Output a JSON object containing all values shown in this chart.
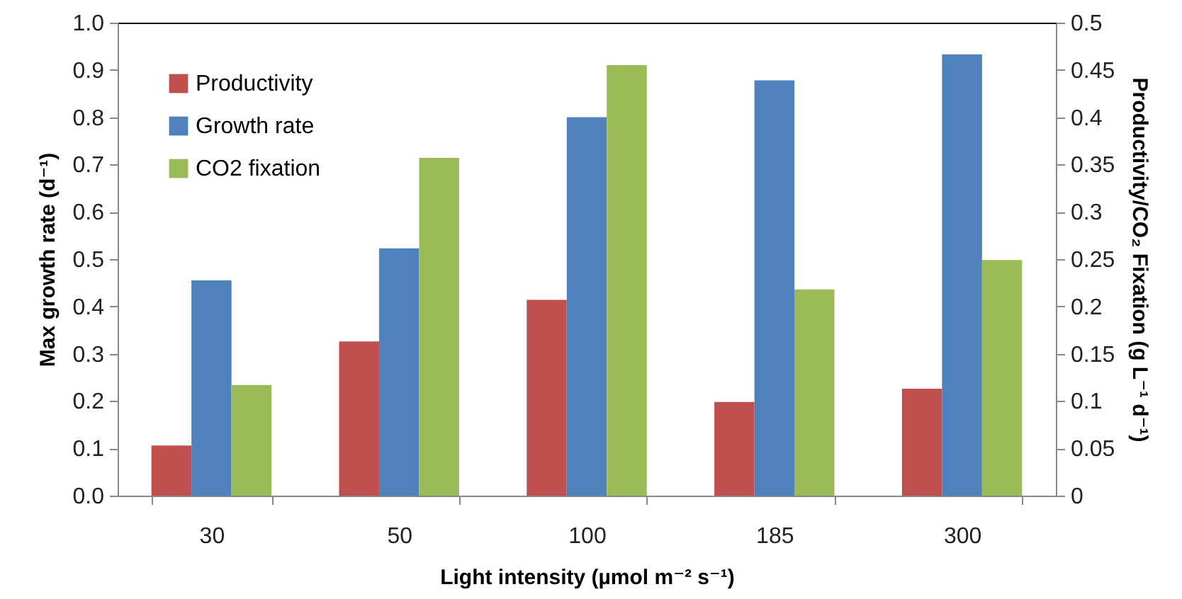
{
  "chart_data": {
    "type": "bar",
    "categories": [
      "30",
      "50",
      "100",
      "185",
      "300"
    ],
    "xlabel": "Light intensity (µmol m⁻² s⁻¹)",
    "ylabel": "Max growth rate (d⁻¹)",
    "y2label": "Productivity/CO₂ Fixation (g L⁻¹ d⁻¹)",
    "series": [
      {
        "name": "Productivity",
        "color": "#c0504d",
        "axis": "y2",
        "values": [
          0.053,
          0.163,
          0.207,
          0.099,
          0.113
        ]
      },
      {
        "name": "Growth rate",
        "color": "#4f81bd",
        "values": [
          0.455,
          0.523,
          0.8,
          0.878,
          0.933
        ]
      },
      {
        "name": "CO2 fixation",
        "color": "#9bbb59",
        "axis": "y2",
        "values": [
          0.117,
          0.357,
          0.455,
          0.218,
          0.249
        ]
      }
    ],
    "ylim": [
      0,
      1
    ],
    "yticks": [
      {
        "value": 0,
        "label": "0.0"
      },
      0.1,
      0.2,
      0.3,
      0.4,
      0.5,
      0.6,
      0.7,
      0.8,
      0.9,
      {
        "value": 1,
        "label": "1.0"
      }
    ],
    "y2lim": [
      0,
      0.5
    ],
    "y2ticks": [
      0,
      0.05,
      0.1,
      0.15,
      0.2,
      0.25,
      0.3,
      0.35,
      0.4,
      0.45,
      0.5
    ],
    "legend": "top left",
    "grid": false
  }
}
